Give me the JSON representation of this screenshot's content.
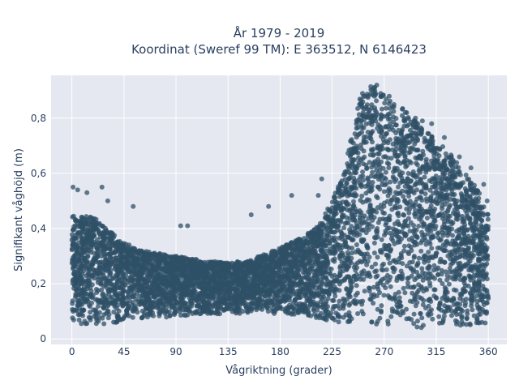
{
  "chart_data": {
    "type": "scatter",
    "title_line1": "År 1979 - 2019",
    "title_line2": "Koordinat (Sweref 99 TM): E 363512, N 6146423",
    "xlabel": "Vågriktning (grader)",
    "ylabel": "Signifikant våghöjd (m)",
    "xlim": [
      -18,
      376
    ],
    "ylim": [
      -0.02,
      0.955
    ],
    "x_ticks": [
      0,
      45,
      90,
      135,
      180,
      225,
      270,
      315,
      360
    ],
    "x_tick_labels": [
      "0",
      "45",
      "90",
      "135",
      "180",
      "225",
      "270",
      "315",
      "360"
    ],
    "y_ticks": [
      0,
      0.2,
      0.4,
      0.6,
      0.8
    ],
    "y_tick_labels": [
      "0",
      "0,2",
      "0,4",
      "0,6",
      "0,8"
    ],
    "grid": true,
    "legend": "none",
    "marker_color": "#2f5067",
    "plot_bg": "#e5e8f0",
    "envelope": {
      "direction": [
        0,
        20,
        45,
        60,
        90,
        120,
        150,
        180,
        200,
        215,
        230,
        240,
        250,
        255,
        265,
        275,
        290,
        305,
        320,
        330,
        340,
        350,
        360
      ],
      "upper": [
        0.45,
        0.44,
        0.35,
        0.32,
        0.3,
        0.28,
        0.28,
        0.33,
        0.37,
        0.42,
        0.55,
        0.7,
        0.9,
        0.92,
        0.92,
        0.88,
        0.82,
        0.76,
        0.7,
        0.66,
        0.6,
        0.55,
        0.45
      ],
      "lower": [
        0.05,
        0.05,
        0.06,
        0.07,
        0.08,
        0.09,
        0.09,
        0.09,
        0.08,
        0.07,
        0.06,
        0.05,
        0.05,
        0.05,
        0.05,
        0.05,
        0.04,
        0.04,
        0.04,
        0.04,
        0.04,
        0.05,
        0.05
      ]
    },
    "outliers": [
      {
        "x": 1,
        "y": 0.55
      },
      {
        "x": 5,
        "y": 0.54
      },
      {
        "x": 13,
        "y": 0.53
      },
      {
        "x": 26,
        "y": 0.55
      },
      {
        "x": 31,
        "y": 0.5
      },
      {
        "x": 53,
        "y": 0.48
      },
      {
        "x": 94,
        "y": 0.41
      },
      {
        "x": 100,
        "y": 0.41
      },
      {
        "x": 155,
        "y": 0.45
      },
      {
        "x": 170,
        "y": 0.48
      },
      {
        "x": 190,
        "y": 0.52
      },
      {
        "x": 213,
        "y": 0.52
      },
      {
        "x": 216,
        "y": 0.58
      },
      {
        "x": 297,
        "y": 0.8
      },
      {
        "x": 303,
        "y": 0.79
      },
      {
        "x": 311,
        "y": 0.78
      },
      {
        "x": 322,
        "y": 0.73
      },
      {
        "x": 335,
        "y": 0.66
      },
      {
        "x": 345,
        "y": 0.62
      },
      {
        "x": 356,
        "y": 0.56
      },
      {
        "x": 359,
        "y": 0.5
      }
    ]
  }
}
